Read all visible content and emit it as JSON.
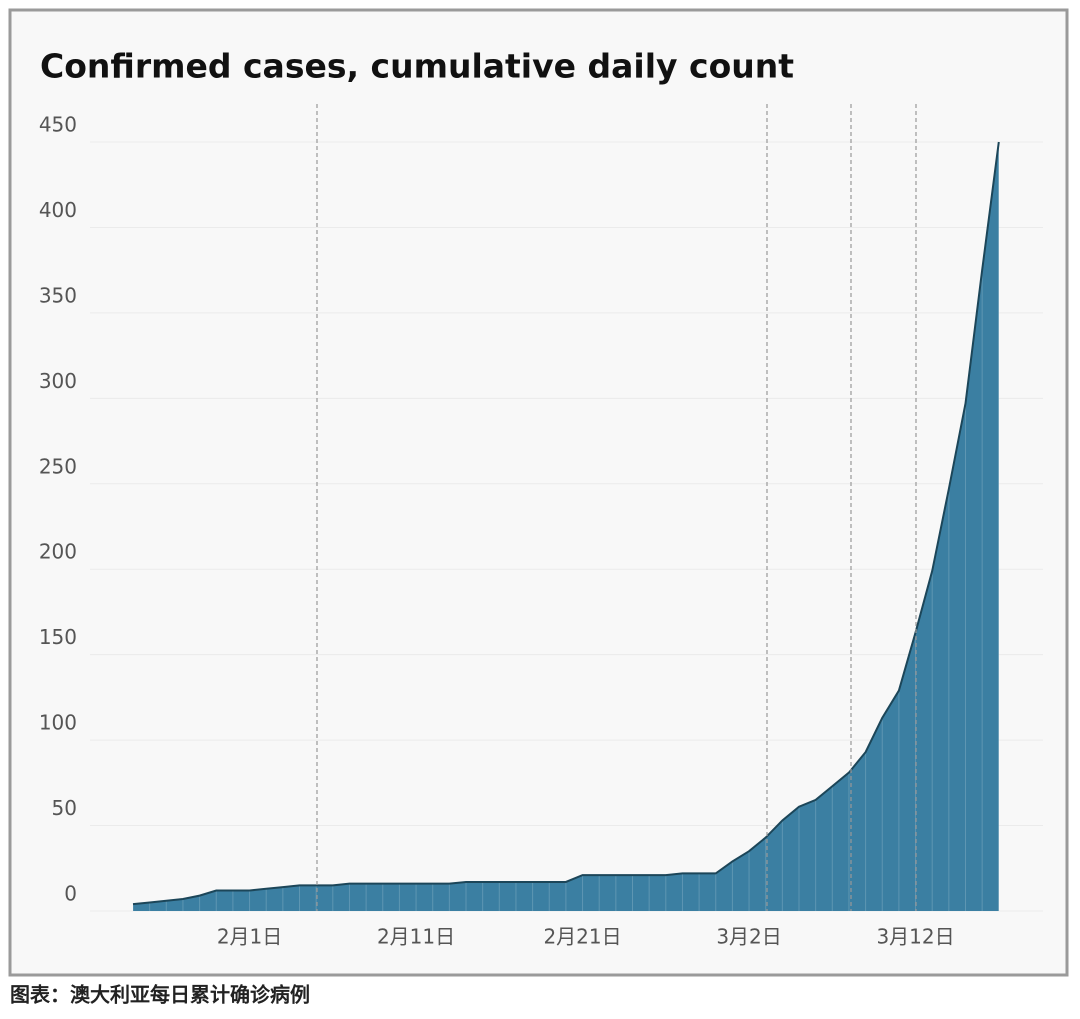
{
  "chart_data": {
    "type": "area",
    "title": "Confirmed cases, cumulative daily count",
    "caption": "图表：澳大利亚每日累计确诊病例",
    "categories": [
      null,
      null,
      null,
      null,
      null,
      null,
      null,
      "2月1日",
      null,
      null,
      null,
      null,
      null,
      null,
      null,
      null,
      null,
      "2月11日",
      null,
      null,
      null,
      null,
      null,
      null,
      null,
      null,
      null,
      "2月21日",
      null,
      null,
      null,
      null,
      null,
      null,
      null,
      null,
      null,
      "3月2日",
      null,
      null,
      null,
      null,
      null,
      null,
      null,
      null,
      null,
      "3月12日",
      null,
      null,
      null,
      null,
      null
    ],
    "values": [
      4,
      5,
      6,
      7,
      9,
      12,
      12,
      12,
      13,
      14,
      15,
      15,
      15,
      16,
      16,
      16,
      16,
      16,
      16,
      16,
      17,
      17,
      17,
      17,
      17,
      17,
      17,
      21,
      21,
      21,
      21,
      21,
      21,
      22,
      22,
      22,
      29,
      35,
      43,
      53,
      61,
      65,
      73,
      81,
      93,
      113,
      129,
      163,
      199,
      247,
      297,
      375,
      450
    ],
    "color": "#3b7fa2",
    "line_color": "#1c4659",
    "ylim": [
      0,
      450
    ],
    "yticks": [
      0,
      50,
      100,
      150,
      200,
      250,
      300,
      350,
      400,
      450
    ],
    "grid": true
  }
}
